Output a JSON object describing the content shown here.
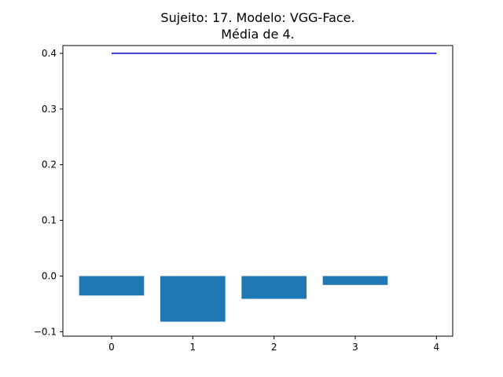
{
  "chart_data": {
    "type": "bar",
    "title_lines": [
      "Sujeito: 17. Modelo: VGG-Face.",
      "Média de 4."
    ],
    "xlabel": "",
    "ylabel": "",
    "categories": [
      "0",
      "1",
      "2",
      "3"
    ],
    "values": [
      -0.035,
      -0.082,
      -0.041,
      -0.016
    ],
    "bar_color": "#1f77b4",
    "reference_line": {
      "x": [
        0,
        4
      ],
      "y": [
        0.4,
        0.4
      ],
      "color": "#0000cc"
    },
    "xlim": [
      -0.6,
      4.2
    ],
    "ylim": [
      -0.108,
      0.414
    ],
    "xticks": [
      "0",
      "1",
      "2",
      "3",
      "4"
    ],
    "yticks": [
      "0.4",
      "0.3",
      "0.2",
      "0.1",
      "0.0",
      "−0.1"
    ],
    "grid": false
  }
}
